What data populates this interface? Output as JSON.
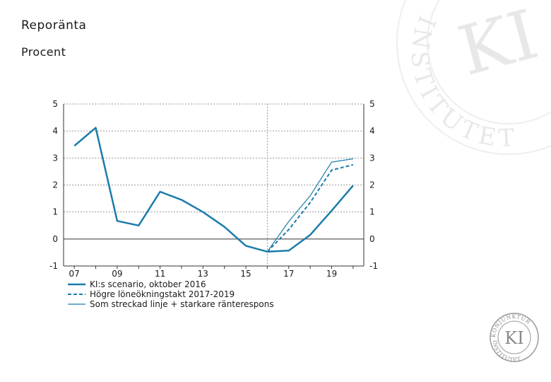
{
  "header": {
    "title": "Reporänta",
    "subtitle": "Procent"
  },
  "logo": {
    "watermark_text": "INSTITUTET",
    "watermark_initials": "KI",
    "seal_top_text": "KONJUNKTUR",
    "seal_bottom_text": "INSTITUTET",
    "seal_initials": "KI"
  },
  "chart_data": {
    "type": "line",
    "x_tick_labels": [
      "07",
      "09",
      "11",
      "13",
      "15",
      "17",
      "19"
    ],
    "x_tick_positions": [
      2007,
      2009,
      2011,
      2013,
      2015,
      2017,
      2019
    ],
    "xlim": [
      2006.5,
      2020.5
    ],
    "ylim": [
      -1,
      5
    ],
    "y_ticks": [
      -1,
      0,
      1,
      2,
      3,
      4,
      5
    ],
    "grid": true,
    "vertical_marker_x": 2016.0,
    "legend_position": "bottom-left",
    "colors": {
      "series": "#1b7cab",
      "axis": "#333333",
      "grid": "#9a9a9a"
    },
    "series": [
      {
        "name": "KI:s scenario, oktober 2016",
        "style": "thick-solid",
        "x": [
          2007,
          2008,
          2009,
          2010,
          2011,
          2012,
          2013,
          2014,
          2015,
          2016,
          2017,
          2018,
          2019,
          2020
        ],
        "y": [
          3.45,
          4.12,
          0.67,
          0.5,
          1.75,
          1.45,
          1.0,
          0.45,
          -0.25,
          -0.47,
          -0.43,
          0.15,
          1.05,
          1.98
        ]
      },
      {
        "name": "Högre löneökningstakt 2017-2019",
        "style": "dashed",
        "x": [
          2016,
          2017,
          2018,
          2019,
          2020
        ],
        "y": [
          -0.47,
          0.35,
          1.35,
          2.55,
          2.75
        ]
      },
      {
        "name": "Som streckad linje + starkare ränterespons",
        "style": "thin-solid",
        "x": [
          2016,
          2017,
          2018,
          2019,
          2020
        ],
        "y": [
          -0.47,
          0.65,
          1.6,
          2.85,
          2.97
        ]
      }
    ]
  }
}
